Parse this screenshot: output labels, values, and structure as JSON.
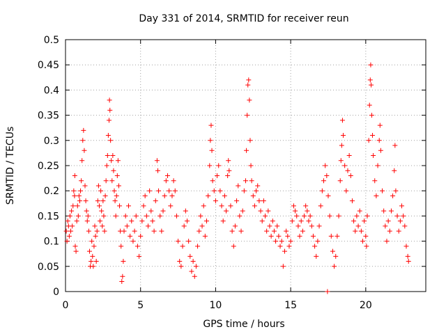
{
  "chart_data": {
    "type": "scatter",
    "title": "Day 331 of 2014, SRMTID for receiver reun",
    "xlabel": "GPS time / hours",
    "ylabel": "SRMTID / TECUs",
    "xlim": [
      0,
      24
    ],
    "ylim": [
      0,
      0.5
    ],
    "xticks": [
      0,
      5,
      10,
      15,
      20
    ],
    "xtick_labels": [
      "0",
      "5",
      "10",
      "15",
      "20"
    ],
    "yticks": [
      0,
      0.05,
      0.1,
      0.15,
      0.2,
      0.25,
      0.3,
      0.35,
      0.4,
      0.45,
      0.5
    ],
    "ytick_labels": [
      "0",
      "0.05",
      "0.1",
      "0.15",
      "0.2",
      "0.25",
      "0.3",
      "0.35",
      "0.4",
      "0.45",
      "0.5"
    ],
    "grid": true,
    "marker": "+",
    "color": "#ff0000",
    "series": [
      {
        "name": "SRMTID",
        "points": [
          [
            0.05,
            0.12
          ],
          [
            0.1,
            0.1
          ],
          [
            0.15,
            0.14
          ],
          [
            0.2,
            0.13
          ],
          [
            0.25,
            0.11
          ],
          [
            0.3,
            0.15
          ],
          [
            0.35,
            0.12
          ],
          [
            0.4,
            0.16
          ],
          [
            0.45,
            0.13
          ],
          [
            0.5,
            0.17
          ],
          [
            0.55,
            0.2
          ],
          [
            0.6,
            0.19
          ],
          [
            0.62,
            0.23
          ],
          [
            0.65,
            0.09
          ],
          [
            0.7,
            0.08
          ],
          [
            0.75,
            0.14
          ],
          [
            0.8,
            0.17
          ],
          [
            0.85,
            0.15
          ],
          [
            0.9,
            0.19
          ],
          [
            0.95,
            0.18
          ],
          [
            1.0,
            0.2
          ],
          [
            1.05,
            0.22
          ],
          [
            1.1,
            0.26
          ],
          [
            1.15,
            0.3
          ],
          [
            1.2,
            0.32
          ],
          [
            1.25,
            0.28
          ],
          [
            1.3,
            0.21
          ],
          [
            1.35,
            0.18
          ],
          [
            1.4,
            0.16
          ],
          [
            1.45,
            0.14
          ],
          [
            1.5,
            0.15
          ],
          [
            1.55,
            0.12
          ],
          [
            1.6,
            0.08
          ],
          [
            1.65,
            0.05
          ],
          [
            1.7,
            0.06
          ],
          [
            1.75,
            0.1
          ],
          [
            1.8,
            0.07
          ],
          [
            1.85,
            0.05
          ],
          [
            1.9,
            0.09
          ],
          [
            1.95,
            0.13
          ],
          [
            2.0,
            0.11
          ],
          [
            2.05,
            0.06
          ],
          [
            2.1,
            0.12
          ],
          [
            2.15,
            0.18
          ],
          [
            2.2,
            0.21
          ],
          [
            2.25,
            0.17
          ],
          [
            2.3,
            0.14
          ],
          [
            2.35,
            0.2
          ],
          [
            2.4,
            0.16
          ],
          [
            2.45,
            0.13
          ],
          [
            2.5,
            0.18
          ],
          [
            2.55,
            0.15
          ],
          [
            2.6,
            0.12
          ],
          [
            2.65,
            0.19
          ],
          [
            2.7,
            0.22
          ],
          [
            2.75,
            0.25
          ],
          [
            2.8,
            0.27
          ],
          [
            2.85,
            0.31
          ],
          [
            2.9,
            0.34
          ],
          [
            2.93,
            0.38
          ],
          [
            2.96,
            0.36
          ],
          [
            3.0,
            0.3
          ],
          [
            3.05,
            0.26
          ],
          [
            3.1,
            0.22
          ],
          [
            3.15,
            0.27
          ],
          [
            3.2,
            0.24
          ],
          [
            3.25,
            0.2
          ],
          [
            3.3,
            0.18
          ],
          [
            3.35,
            0.15
          ],
          [
            3.4,
            0.19
          ],
          [
            3.45,
            0.23
          ],
          [
            3.5,
            0.26
          ],
          [
            3.55,
            0.21
          ],
          [
            3.6,
            0.17
          ],
          [
            3.65,
            0.12
          ],
          [
            3.7,
            0.09
          ],
          [
            3.75,
            0.02
          ],
          [
            3.8,
            0.03
          ],
          [
            3.85,
            0.06
          ],
          [
            3.9,
            0.12
          ],
          [
            4.0,
            0.15
          ],
          [
            4.1,
            0.13
          ],
          [
            4.2,
            0.17
          ],
          [
            4.3,
            0.11
          ],
          [
            4.4,
            0.14
          ],
          [
            4.5,
            0.1
          ],
          [
            4.6,
            0.12
          ],
          [
            4.7,
            0.15
          ],
          [
            4.8,
            0.09
          ],
          [
            4.9,
            0.07
          ],
          [
            5.0,
            0.11
          ],
          [
            5.1,
            0.14
          ],
          [
            5.2,
            0.17
          ],
          [
            5.3,
            0.19
          ],
          [
            5.4,
            0.15
          ],
          [
            5.5,
            0.13
          ],
          [
            5.6,
            0.2
          ],
          [
            5.7,
            0.16
          ],
          [
            5.8,
            0.14
          ],
          [
            5.9,
            0.12
          ],
          [
            6.0,
            0.18
          ],
          [
            6.1,
            0.26
          ],
          [
            6.15,
            0.24
          ],
          [
            6.2,
            0.2
          ],
          [
            6.3,
            0.15
          ],
          [
            6.4,
            0.12
          ],
          [
            6.5,
            0.16
          ],
          [
            6.6,
            0.19
          ],
          [
            6.7,
            0.22
          ],
          [
            6.8,
            0.23
          ],
          [
            6.9,
            0.2
          ],
          [
            7.0,
            0.17
          ],
          [
            7.1,
            0.19
          ],
          [
            7.2,
            0.22
          ],
          [
            7.3,
            0.2
          ],
          [
            7.4,
            0.15
          ],
          [
            7.5,
            0.1
          ],
          [
            7.6,
            0.06
          ],
          [
            7.7,
            0.05
          ],
          [
            7.8,
            0.09
          ],
          [
            7.9,
            0.13
          ],
          [
            8.0,
            0.16
          ],
          [
            8.1,
            0.14
          ],
          [
            8.2,
            0.1
          ],
          [
            8.3,
            0.07
          ],
          [
            8.4,
            0.04
          ],
          [
            8.5,
            0.06
          ],
          [
            8.6,
            0.03
          ],
          [
            8.7,
            0.05
          ],
          [
            8.8,
            0.09
          ],
          [
            8.9,
            0.12
          ],
          [
            9.0,
            0.15
          ],
          [
            9.1,
            0.13
          ],
          [
            9.2,
            0.17
          ],
          [
            9.3,
            0.11
          ],
          [
            9.4,
            0.14
          ],
          [
            9.5,
            0.19
          ],
          [
            9.6,
            0.25
          ],
          [
            9.65,
            0.3
          ],
          [
            9.7,
            0.33
          ],
          [
            9.75,
            0.28
          ],
          [
            9.8,
            0.22
          ],
          [
            9.9,
            0.2
          ],
          [
            10.0,
            0.18
          ],
          [
            10.1,
            0.23
          ],
          [
            10.2,
            0.25
          ],
          [
            10.3,
            0.2
          ],
          [
            10.4,
            0.17
          ],
          [
            10.5,
            0.14
          ],
          [
            10.6,
            0.19
          ],
          [
            10.7,
            0.16
          ],
          [
            10.8,
            0.23
          ],
          [
            10.85,
            0.26
          ],
          [
            10.9,
            0.24
          ],
          [
            11.0,
            0.17
          ],
          [
            11.1,
            0.12
          ],
          [
            11.2,
            0.09
          ],
          [
            11.3,
            0.13
          ],
          [
            11.4,
            0.18
          ],
          [
            11.5,
            0.21
          ],
          [
            11.6,
            0.15
          ],
          [
            11.7,
            0.12
          ],
          [
            11.8,
            0.16
          ],
          [
            11.9,
            0.2
          ],
          [
            12.0,
            0.22
          ],
          [
            12.05,
            0.28
          ],
          [
            12.1,
            0.35
          ],
          [
            12.15,
            0.41
          ],
          [
            12.2,
            0.42
          ],
          [
            12.25,
            0.38
          ],
          [
            12.3,
            0.3
          ],
          [
            12.35,
            0.25
          ],
          [
            12.4,
            0.22
          ],
          [
            12.5,
            0.19
          ],
          [
            12.6,
            0.17
          ],
          [
            12.7,
            0.2
          ],
          [
            12.8,
            0.21
          ],
          [
            12.9,
            0.18
          ],
          [
            13.0,
            0.16
          ],
          [
            13.1,
            0.14
          ],
          [
            13.2,
            0.18
          ],
          [
            13.3,
            0.15
          ],
          [
            13.4,
            0.12
          ],
          [
            13.5,
            0.16
          ],
          [
            13.6,
            0.13
          ],
          [
            13.7,
            0.11
          ],
          [
            13.8,
            0.14
          ],
          [
            13.9,
            0.12
          ],
          [
            14.0,
            0.1
          ],
          [
            14.1,
            0.13
          ],
          [
            14.2,
            0.11
          ],
          [
            14.3,
            0.09
          ],
          [
            14.4,
            0.1
          ],
          [
            14.5,
            0.05
          ],
          [
            14.6,
            0.08
          ],
          [
            14.7,
            0.12
          ],
          [
            14.8,
            0.11
          ],
          [
            14.9,
            0.09
          ],
          [
            15.0,
            0.1
          ],
          [
            15.1,
            0.14
          ],
          [
            15.2,
            0.17
          ],
          [
            15.3,
            0.16
          ],
          [
            15.4,
            0.15
          ],
          [
            15.5,
            0.13
          ],
          [
            15.6,
            0.11
          ],
          [
            15.7,
            0.14
          ],
          [
            15.8,
            0.12
          ],
          [
            15.9,
            0.15
          ],
          [
            16.0,
            0.17
          ],
          [
            16.1,
            0.16
          ],
          [
            16.2,
            0.14
          ],
          [
            16.3,
            0.15
          ],
          [
            16.4,
            0.13
          ],
          [
            16.5,
            0.11
          ],
          [
            16.6,
            0.09
          ],
          [
            16.7,
            0.07
          ],
          [
            16.8,
            0.1
          ],
          [
            16.9,
            0.13
          ],
          [
            17.0,
            0.17
          ],
          [
            17.1,
            0.2
          ],
          [
            17.2,
            0.22
          ],
          [
            17.3,
            0.25
          ],
          [
            17.4,
            0.23
          ],
          [
            17.45,
            0.0
          ],
          [
            17.5,
            0.19
          ],
          [
            17.6,
            0.15
          ],
          [
            17.7,
            0.11
          ],
          [
            17.8,
            0.08
          ],
          [
            17.9,
            0.05
          ],
          [
            18.0,
            0.07
          ],
          [
            18.1,
            0.11
          ],
          [
            18.2,
            0.15
          ],
          [
            18.3,
            0.22
          ],
          [
            18.35,
            0.26
          ],
          [
            18.4,
            0.29
          ],
          [
            18.45,
            0.34
          ],
          [
            18.5,
            0.31
          ],
          [
            18.6,
            0.25
          ],
          [
            18.7,
            0.2
          ],
          [
            18.8,
            0.24
          ],
          [
            18.9,
            0.27
          ],
          [
            19.0,
            0.23
          ],
          [
            19.1,
            0.18
          ],
          [
            19.2,
            0.14
          ],
          [
            19.3,
            0.12
          ],
          [
            19.4,
            0.15
          ],
          [
            19.5,
            0.13
          ],
          [
            19.6,
            0.16
          ],
          [
            19.7,
            0.12
          ],
          [
            19.8,
            0.1
          ],
          [
            19.9,
            0.14
          ],
          [
            20.0,
            0.11
          ],
          [
            20.05,
            0.09
          ],
          [
            20.1,
            0.15
          ],
          [
            20.2,
            0.3
          ],
          [
            20.25,
            0.37
          ],
          [
            20.3,
            0.42
          ],
          [
            20.33,
            0.45
          ],
          [
            20.36,
            0.41
          ],
          [
            20.4,
            0.35
          ],
          [
            20.45,
            0.31
          ],
          [
            20.5,
            0.27
          ],
          [
            20.6,
            0.22
          ],
          [
            20.7,
            0.19
          ],
          [
            20.8,
            0.25
          ],
          [
            20.9,
            0.3
          ],
          [
            20.95,
            0.33
          ],
          [
            21.0,
            0.28
          ],
          [
            21.1,
            0.2
          ],
          [
            21.2,
            0.16
          ],
          [
            21.3,
            0.13
          ],
          [
            21.4,
            0.1
          ],
          [
            21.5,
            0.14
          ],
          [
            21.6,
            0.12
          ],
          [
            21.7,
            0.16
          ],
          [
            21.8,
            0.19
          ],
          [
            21.9,
            0.24
          ],
          [
            21.95,
            0.29
          ],
          [
            22.0,
            0.2
          ],
          [
            22.1,
            0.15
          ],
          [
            22.2,
            0.12
          ],
          [
            22.3,
            0.14
          ],
          [
            22.4,
            0.17
          ],
          [
            22.5,
            0.15
          ],
          [
            22.6,
            0.13
          ],
          [
            22.7,
            0.09
          ],
          [
            22.8,
            0.07
          ],
          [
            22.85,
            0.06
          ]
        ]
      }
    ]
  }
}
